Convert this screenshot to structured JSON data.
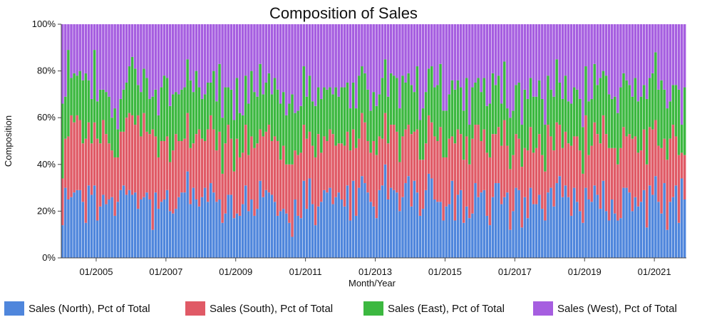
{
  "chart_data": {
    "type": "bar",
    "stacked": true,
    "normalized": true,
    "title": "Composition of Sales",
    "xlabel": "Month/Year",
    "ylabel": "Composition",
    "ylim": [
      0,
      100
    ],
    "yticks": [
      "0%",
      "20%",
      "40%",
      "60%",
      "80%",
      "100%"
    ],
    "xticks": [
      "01/2005",
      "01/2007",
      "01/2009",
      "01/2011",
      "01/2013",
      "01/2015",
      "01/2017",
      "01/2019",
      "01/2021"
    ],
    "x_start": "01/2004",
    "x_end": "12/2020",
    "legend_position": "bottom",
    "grid": false,
    "series": [
      {
        "name": "Sales (North), Pct of Total",
        "color": "#4f86dc",
        "values": [
          14,
          30,
          25,
          26,
          28,
          29,
          29,
          24,
          15,
          31,
          27,
          31,
          16,
          22,
          27,
          23,
          25,
          26,
          18,
          24,
          29,
          31,
          27,
          29,
          27,
          28,
          21,
          25,
          26,
          28,
          25,
          12,
          28,
          21,
          24,
          25,
          29,
          20,
          19,
          21,
          26,
          28,
          28,
          37,
          23,
          30,
          25,
          22,
          26,
          30,
          24,
          32,
          28,
          24,
          25,
          15,
          19,
          27,
          27,
          17,
          19,
          18,
          23,
          31,
          20,
          25,
          18,
          21,
          33,
          26,
          29,
          28,
          27,
          24,
          18,
          20,
          21,
          19,
          15,
          9,
          25,
          18,
          17,
          33,
          21,
          34,
          23,
          14,
          22,
          24,
          29,
          28,
          30,
          23,
          26,
          28,
          25,
          22,
          31,
          16,
          33,
          18,
          30,
          35,
          32,
          28,
          24,
          22,
          17,
          29,
          31,
          40,
          25,
          30,
          29,
          28,
          20,
          26,
          32,
          35,
          22,
          33,
          28,
          18,
          21,
          29,
          36,
          34,
          25,
          24,
          24,
          16,
          22,
          23,
          33,
          16,
          27,
          29,
          15,
          22,
          17,
          19,
          32,
          26,
          28,
          29,
          18,
          14,
          26,
          32,
          32,
          23,
          26,
          28,
          12,
          20,
          30,
          29,
          13,
          26,
          17,
          30,
          23,
          23,
          27,
          21,
          16,
          28,
          30,
          22,
          32,
          35,
          26,
          31,
          26,
          18,
          30,
          24,
          20,
          15,
          30,
          25,
          24,
          31,
          27,
          21,
          33,
          20,
          16,
          25,
          19,
          16,
          17,
          30,
          30,
          28,
          20,
          26,
          22,
          24,
          29,
          13,
          31,
          27,
          35,
          24,
          19,
          32,
          12,
          24,
          26,
          31,
          15,
          34,
          25
        ]
      },
      {
        "name": "Sales (South), Pct of Total",
        "color": "#e05a66",
        "values": [
          20,
          21,
          27,
          35,
          30,
          32,
          30,
          25,
          36,
          27,
          22,
          27,
          35,
          27,
          32,
          30,
          24,
          20,
          25,
          19,
          25,
          23,
          33,
          33,
          34,
          29,
          40,
          27,
          36,
          26,
          28,
          43,
          24,
          22,
          26,
          25,
          23,
          21,
          27,
          32,
          24,
          22,
          23,
          25,
          24,
          19,
          28,
          33,
          25,
          20,
          31,
          29,
          27,
          22,
          29,
          21,
          30,
          30,
          24,
          20,
          32,
          25,
          22,
          26,
          24,
          27,
          29,
          28,
          22,
          26,
          25,
          29,
          23,
          28,
          32,
          22,
          27,
          21,
          25,
          31,
          21,
          26,
          28,
          24,
          30,
          20,
          25,
          29,
          31,
          21,
          23,
          22,
          25,
          30,
          22,
          21,
          24,
          26,
          23,
          30,
          22,
          29,
          21,
          27,
          26,
          22,
          21,
          28,
          27,
          23,
          20,
          22,
          24,
          27,
          28,
          26,
          21,
          26,
          23,
          22,
          31,
          21,
          27,
          24,
          21,
          20,
          25,
          24,
          27,
          26,
          32,
          27,
          21,
          28,
          19,
          33,
          28,
          24,
          27,
          30,
          23,
          32,
          25,
          31,
          22,
          26,
          27,
          29,
          27,
          21,
          24,
          25,
          33,
          20,
          26,
          24,
          23,
          22,
          26,
          21,
          29,
          26,
          22,
          24,
          26,
          23,
          21,
          29,
          22,
          24,
          26,
          22,
          21,
          23,
          23,
          30,
          22,
          28,
          26,
          21,
          31,
          19,
          24,
          27,
          26,
          28,
          28,
          33,
          31,
          22,
          28,
          24,
          30,
          26,
          22,
          25,
          31,
          26,
          23,
          22,
          26,
          27,
          25,
          28,
          24,
          24,
          28,
          19,
          30,
          27,
          31,
          21,
          29,
          11,
          19
        ]
      },
      {
        "name": "Sales (East), Pct of Total",
        "color": "#3cb840",
        "values": [
          32,
          18,
          37,
          16,
          21,
          17,
          21,
          27,
          28,
          18,
          19,
          31,
          16,
          23,
          13,
          18,
          20,
          14,
          21,
          12,
          14,
          18,
          15,
          20,
          25,
          24,
          13,
          19,
          19,
          23,
          15,
          14,
          20,
          18,
          23,
          28,
          25,
          24,
          24,
          18,
          20,
          22,
          22,
          23,
          29,
          22,
          27,
          18,
          17,
          20,
          20,
          14,
          25,
          21,
          29,
          24,
          24,
          16,
          21,
          22,
          26,
          19,
          16,
          21,
          22,
          28,
          24,
          20,
          28,
          18,
          21,
          22,
          20,
          25,
          22,
          24,
          23,
          21,
          26,
          30,
          16,
          19,
          20,
          25,
          18,
          24,
          19,
          22,
          20,
          23,
          21,
          22,
          18,
          17,
          25,
          20,
          24,
          25,
          21,
          18,
          20,
          17,
          27,
          20,
          21,
          22,
          18,
          21,
          21,
          18,
          26,
          23,
          20,
          22,
          21,
          23,
          23,
          26,
          20,
          22,
          21,
          17,
          27,
          17,
          22,
          22,
          20,
          24,
          21,
          24,
          27,
          20,
          20,
          19,
          24,
          23,
          21,
          20,
          21,
          25,
          17,
          22,
          18,
          20,
          21,
          22,
          20,
          23,
          26,
          21,
          22,
          18,
          25,
          16,
          22,
          19,
          21,
          24,
          18,
          25,
          22,
          21,
          24,
          22,
          23,
          24,
          20,
          21,
          20,
          23,
          27,
          18,
          21,
          24,
          18,
          18,
          21,
          20,
          22,
          20,
          21,
          23,
          20,
          25,
          21,
          28,
          19,
          25,
          23,
          21,
          22,
          22,
          26,
          23,
          24,
          21,
          18,
          25,
          22,
          23,
          19,
          28,
          21,
          24,
          29,
          24,
          29,
          21,
          22,
          16,
          17,
          22,
          28,
          12,
          29
        ]
      },
      {
        "name": "Sales (West), Pct of Total",
        "color": "#a65ee0",
        "values": [
          34,
          31,
          11,
          23,
          21,
          22,
          20,
          24,
          21,
          24,
          32,
          11,
          33,
          28,
          28,
          29,
          31,
          40,
          36,
          45,
          32,
          28,
          25,
          18,
          14,
          19,
          26,
          29,
          19,
          23,
          32,
          31,
          28,
          39,
          27,
          22,
          23,
          35,
          30,
          29,
          30,
          28,
          27,
          15,
          24,
          29,
          20,
          27,
          32,
          30,
          25,
          25,
          20,
          33,
          17,
          40,
          27,
          27,
          28,
          41,
          23,
          38,
          39,
          22,
          34,
          20,
          29,
          31,
          17,
          30,
          25,
          21,
          30,
          23,
          28,
          34,
          29,
          39,
          34,
          30,
          38,
          37,
          35,
          18,
          31,
          22,
          33,
          35,
          27,
          32,
          27,
          28,
          27,
          30,
          27,
          31,
          27,
          27,
          25,
          36,
          25,
          36,
          22,
          18,
          21,
          28,
          37,
          29,
          35,
          30,
          23,
          15,
          31,
          21,
          22,
          23,
          36,
          22,
          25,
          21,
          26,
          29,
          18,
          41,
          36,
          29,
          19,
          18,
          27,
          26,
          17,
          37,
          37,
          30,
          24,
          28,
          24,
          27,
          37,
          23,
          43,
          27,
          25,
          23,
          29,
          23,
          35,
          34,
          21,
          26,
          22,
          34,
          16,
          36,
          40,
          37,
          26,
          25,
          43,
          28,
          32,
          23,
          31,
          31,
          24,
          32,
          43,
          22,
          28,
          31,
          15,
          25,
          32,
          22,
          33,
          34,
          27,
          28,
          32,
          44,
          18,
          33,
          32,
          17,
          26,
          23,
          20,
          22,
          30,
          32,
          31,
          38,
          27,
          21,
          24,
          26,
          31,
          23,
          33,
          31,
          26,
          32,
          23,
          21,
          12,
          28,
          24,
          28,
          36,
          33,
          26,
          26,
          28,
          43,
          27
        ]
      }
    ]
  }
}
